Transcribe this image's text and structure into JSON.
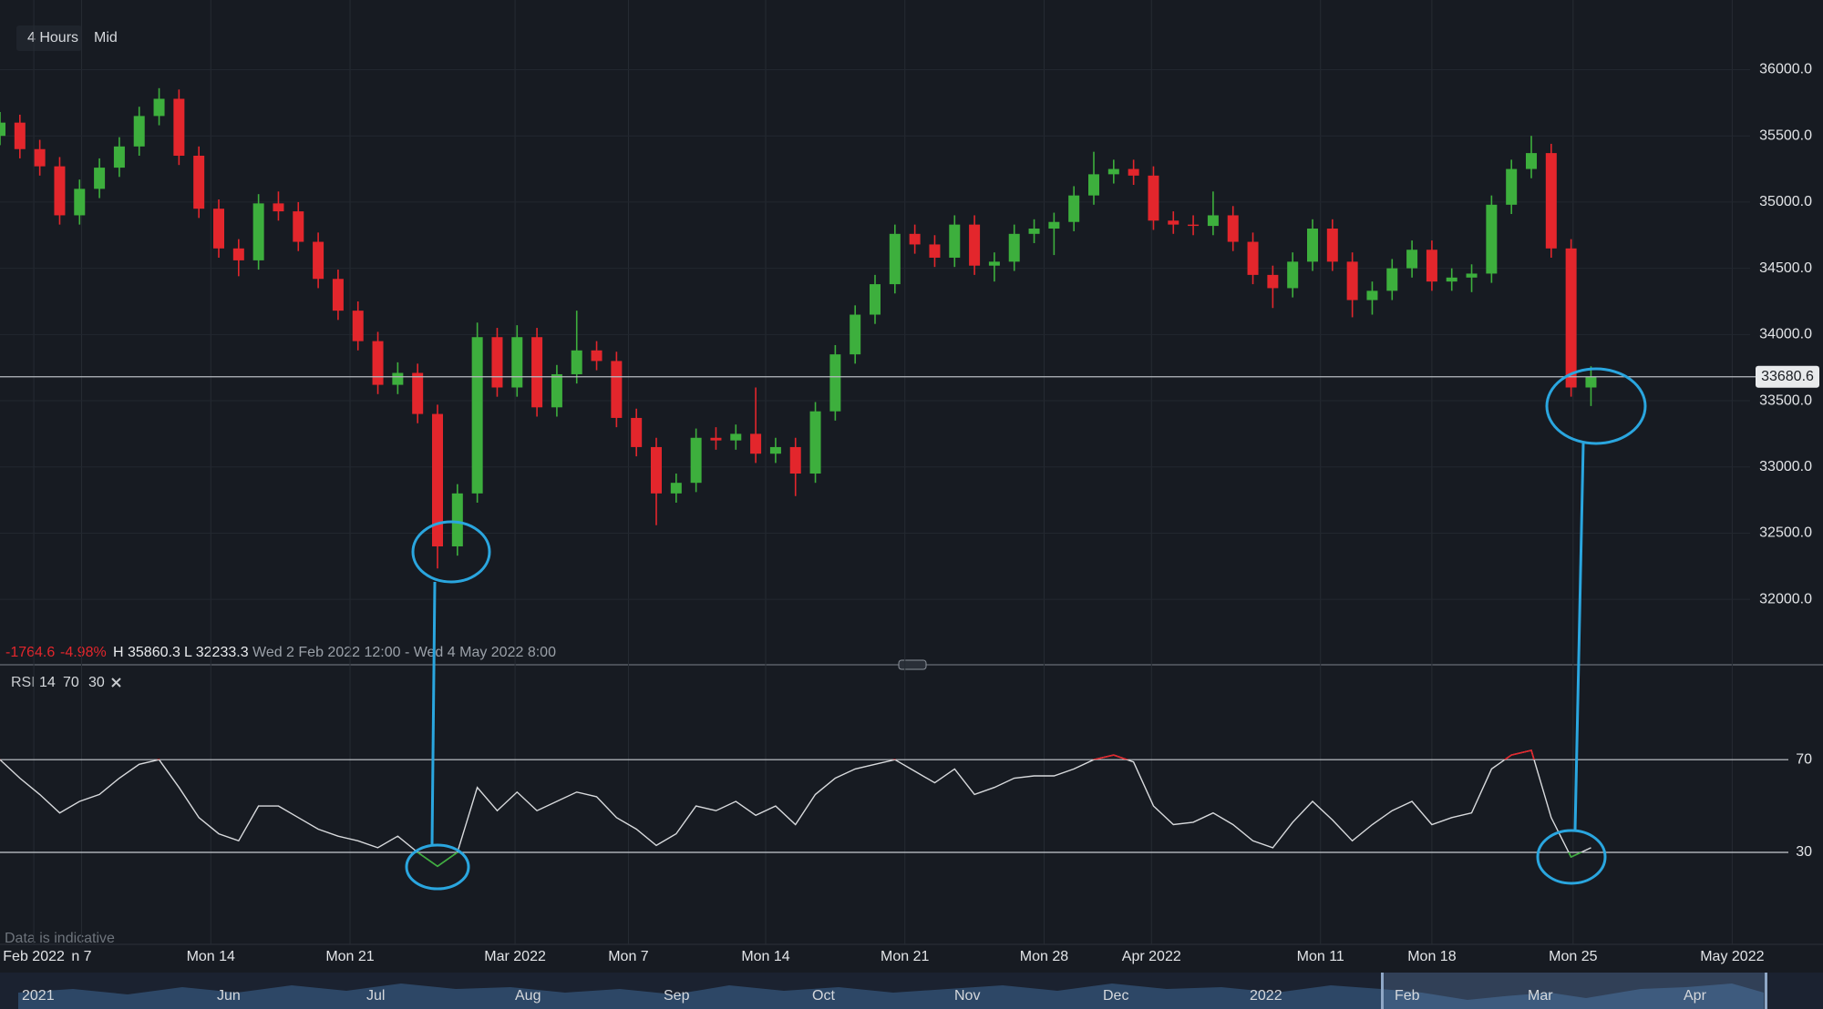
{
  "toolbar": {
    "interval": "4 Hours",
    "price_type": "Mid"
  },
  "chart_data": {
    "type": "candlestick",
    "open": [
      35500,
      35600,
      35400,
      35270,
      34900,
      35100,
      35260,
      35420,
      35650,
      35780,
      35350,
      34950,
      34650,
      34560,
      34990,
      34930,
      34700,
      34420,
      34180,
      33950,
      33620,
      33710,
      33400,
      32400,
      32800,
      33980,
      33600,
      33980,
      33450,
      33700,
      33880,
      33800,
      33370,
      33150,
      32800,
      32880,
      33220,
      33200,
      33250,
      33100,
      33150,
      32950,
      33420,
      33850,
      34150,
      34380,
      34760,
      34680,
      34580,
      34830,
      34520,
      34550,
      34760,
      34800,
      34850,
      35050,
      35210,
      35250,
      35200,
      34860,
      34830,
      34820,
      34900,
      34700,
      34450,
      34350,
      34550,
      34800,
      34550,
      34260,
      34330,
      34500,
      34640,
      34400,
      34430,
      34460,
      34980,
      35250,
      35370,
      34650,
      33600
    ],
    "high": [
      35680,
      35660,
      35470,
      35340,
      35170,
      35330,
      35490,
      35720,
      35860.3,
      35850,
      35420,
      35020,
      34720,
      35060,
      35080,
      35000,
      34770,
      34490,
      34250,
      34020,
      33790,
      33780,
      33470,
      32870,
      34090,
      34050,
      34070,
      34050,
      33770,
      34180,
      33950,
      33870,
      33440,
      33220,
      32950,
      33290,
      33300,
      33320,
      33600,
      33220,
      33220,
      33490,
      33920,
      34220,
      34450,
      34830,
      34830,
      34750,
      34900,
      34900,
      34620,
      34830,
      34870,
      34920,
      35120,
      35380,
      35320,
      35320,
      35270,
      34930,
      34900,
      35080,
      34970,
      34770,
      34520,
      34620,
      34870,
      34870,
      34620,
      34400,
      34570,
      34710,
      34710,
      34500,
      34530,
      35050,
      35320,
      35500,
      35440,
      34720,
      33760
    ],
    "low": [
      35430,
      35330,
      35200,
      34830,
      34830,
      35030,
      35190,
      35350,
      35580,
      35280,
      34880,
      34580,
      34440,
      34490,
      34860,
      34630,
      34350,
      34110,
      33880,
      33550,
      33550,
      33330,
      32233.3,
      32330,
      32730,
      33530,
      33530,
      33380,
      33380,
      33630,
      33730,
      33300,
      33080,
      32560,
      32730,
      32810,
      33130,
      33130,
      33030,
      33030,
      32780,
      32880,
      33350,
      33780,
      34080,
      34310,
      34610,
      34510,
      34510,
      34450,
      34400,
      34480,
      34690,
      34600,
      34780,
      34980,
      35140,
      35130,
      34790,
      34760,
      34750,
      34750,
      34630,
      34380,
      34200,
      34280,
      34480,
      34480,
      34130,
      34150,
      34260,
      34430,
      34330,
      34330,
      34320,
      34390,
      34910,
      35180,
      34580,
      33530,
      33460
    ],
    "close": [
      35600,
      35400,
      35270,
      34900,
      35100,
      35260,
      35420,
      35650,
      35780,
      35350,
      34950,
      34650,
      34560,
      34990,
      34930,
      34700,
      34420,
      34180,
      33950,
      33620,
      33710,
      33400,
      32400,
      32800,
      33980,
      33600,
      33980,
      33450,
      33700,
      33880,
      33800,
      33370,
      33150,
      32800,
      32880,
      33220,
      33200,
      33250,
      33100,
      33150,
      32950,
      33420,
      33850,
      34150,
      34380,
      34760,
      34680,
      34580,
      34830,
      34520,
      34550,
      34760,
      34800,
      34850,
      35050,
      35210,
      35250,
      35200,
      34860,
      34830,
      34820,
      34900,
      34700,
      34450,
      34350,
      34550,
      34800,
      34550,
      34260,
      34330,
      34500,
      34640,
      34400,
      34430,
      34460,
      34980,
      35250,
      35370,
      34650,
      33600,
      33680.6
    ],
    "up_color": "#3daf3d",
    "down_color": "#e3262c",
    "xlim": [
      0,
      88
    ],
    "xticks": [
      {
        "value": 1.7,
        "label": "Feb 2022"
      },
      {
        "value": 4.1,
        "label": "n 7"
      },
      {
        "value": 10.6,
        "label": "Mon 14"
      },
      {
        "value": 17.6,
        "label": "Mon 21"
      },
      {
        "value": 25.9,
        "label": "Mar 2022"
      },
      {
        "value": 31.6,
        "label": "Mon 7"
      },
      {
        "value": 38.5,
        "label": "Mon 14"
      },
      {
        "value": 45.5,
        "label": "Mon 21"
      },
      {
        "value": 52.5,
        "label": "Mon 28"
      },
      {
        "value": 57.9,
        "label": "Apr 2022"
      },
      {
        "value": 66.4,
        "label": "Mon 11"
      },
      {
        "value": 72,
        "label": "Mon 18"
      },
      {
        "value": 79.1,
        "label": "Mon 25"
      },
      {
        "value": 87.1,
        "label": "May 2022"
      }
    ],
    "ylim": [
      31506,
      36526
    ],
    "yticks": [
      {
        "value": 32000,
        "label": "32000.0"
      },
      {
        "value": 32500,
        "label": "32500.0"
      },
      {
        "value": 33000,
        "label": "33000.0"
      },
      {
        "value": 33500,
        "label": "33500.0"
      },
      {
        "value": 34000,
        "label": "34000.0"
      },
      {
        "value": 34500,
        "label": "34500.0"
      },
      {
        "value": 35000,
        "label": "35000.0"
      },
      {
        "value": 35500,
        "label": "35500.0"
      },
      {
        "value": 36000,
        "label": "36000.0"
      }
    ],
    "grid": true,
    "last_price": {
      "value": 33680.6,
      "label": "33680.6"
    },
    "summary": {
      "change": -1764.6,
      "change_pct": {
        "value": -4.98,
        "label": "-4.98%"
      },
      "high": {
        "value": 35860.3,
        "label": "H 35860.3"
      },
      "low": {
        "value": 32233.3,
        "label": "L 32233.3"
      },
      "range": "Wed 2 Feb 2022 12:00 - Wed 4 May 2022 8:00"
    },
    "rsi": {
      "type": "line",
      "label": "RSI",
      "period": 14,
      "upper": 70,
      "lower": 30,
      "values": [
        70,
        62,
        55,
        47,
        52,
        55,
        62,
        68,
        70,
        58,
        45,
        38,
        35,
        50,
        50,
        45,
        40,
        37,
        35,
        32,
        37,
        30,
        24,
        30,
        58,
        48,
        56,
        48,
        52,
        56,
        54,
        45,
        40,
        33,
        38,
        50,
        48,
        52,
        46,
        50,
        42,
        55,
        62,
        66,
        68,
        70,
        65,
        60,
        66,
        55,
        58,
        62,
        63,
        63,
        66,
        70,
        72,
        69,
        50,
        42,
        43,
        47,
        42,
        35,
        32,
        43,
        52,
        44,
        35,
        42,
        48,
        52,
        42,
        45,
        47,
        66,
        72,
        74,
        45,
        28,
        32
      ],
      "ylim": [
        -3,
        107
      ],
      "yticks": [
        30,
        70
      ],
      "color": "#d8dadd",
      "over_color": "#e3262c",
      "under_color": "#3daf3d"
    }
  },
  "footer": {
    "disclaimer": "Data is indicative",
    "navigator_labels": [
      "2021",
      "Jun",
      "Jul",
      "Aug",
      "Sep",
      "Oct",
      "Nov",
      "Dec",
      "2022",
      "Feb",
      "Mar",
      "Apr"
    ]
  }
}
